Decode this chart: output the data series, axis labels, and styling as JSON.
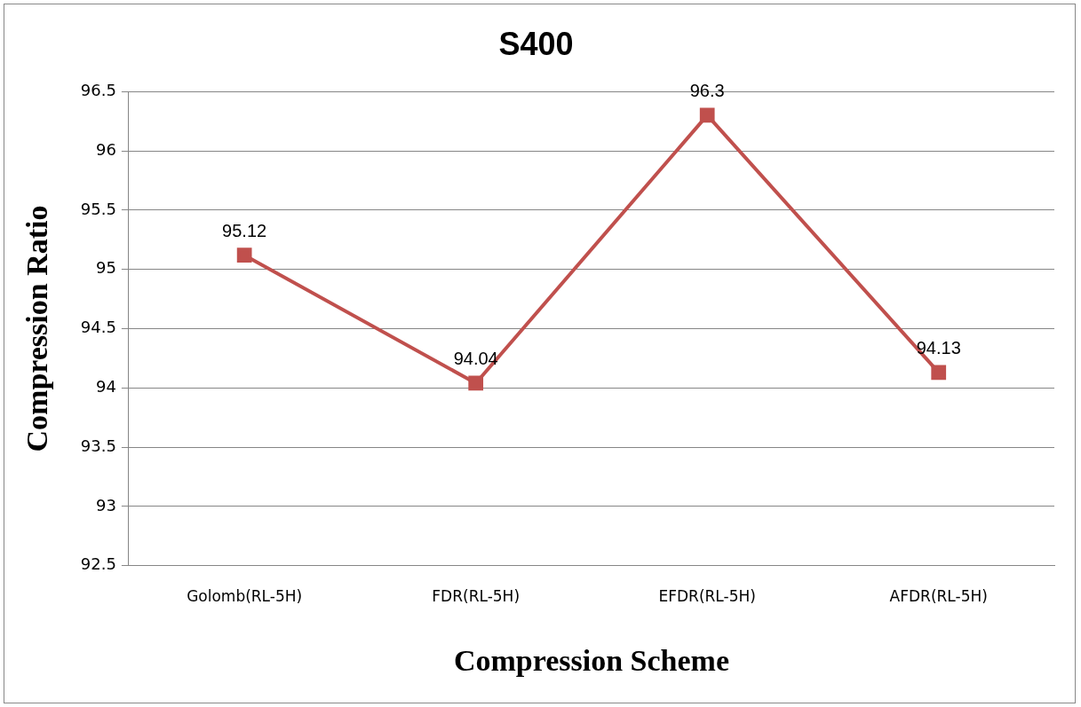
{
  "chart_data": {
    "type": "line",
    "title": "S400",
    "xlabel": "Compression Scheme",
    "ylabel": "Compression Ratio",
    "categories": [
      "Golomb(RL-5H)",
      "FDR(RL-5H)",
      "EFDR(RL-5H)",
      "AFDR(RL-5H)"
    ],
    "series": [
      {
        "color": "#c0504d",
        "values": [
          95.12,
          94.04,
          96.3,
          94.13
        ]
      }
    ],
    "ylim": [
      92.5,
      96.5
    ],
    "yticks": [
      92.5,
      93,
      93.5,
      94,
      94.5,
      95,
      95.5,
      96,
      96.5
    ],
    "grid": "y",
    "legend": false,
    "marker": "square",
    "line_style": "solid",
    "data_labels": true
  }
}
